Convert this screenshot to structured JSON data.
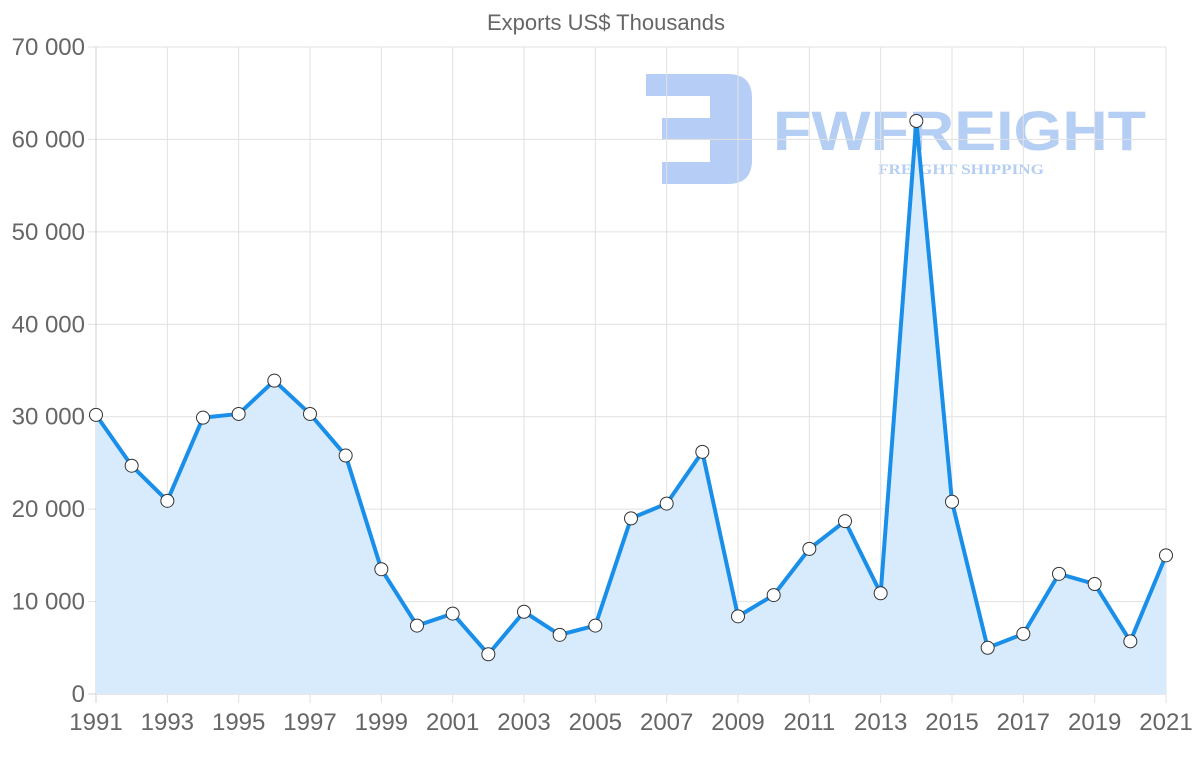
{
  "chart_data": {
    "type": "area",
    "title": "Exports US$ Thousands",
    "xlabel": "",
    "ylabel": "",
    "ylim": [
      0,
      70000
    ],
    "yticks": [
      0,
      10000,
      20000,
      30000,
      40000,
      50000,
      60000,
      70000
    ],
    "ytick_labels": [
      "0",
      "10 000",
      "20 000",
      "30 000",
      "40 000",
      "50 000",
      "60 000",
      "70 000"
    ],
    "xtick_labels": [
      "1991",
      "1993",
      "1995",
      "1997",
      "1999",
      "2001",
      "2003",
      "2005",
      "2007",
      "2009",
      "2011",
      "2013",
      "2015",
      "2017",
      "2019",
      "2021"
    ],
    "grid": true,
    "legend": "none",
    "categories": [
      "1991",
      "1992",
      "1993",
      "1994",
      "1995",
      "1996",
      "1997",
      "1998",
      "1999",
      "2000",
      "2001",
      "2002",
      "2003",
      "2004",
      "2005",
      "2006",
      "2007",
      "2008",
      "2009",
      "2010",
      "2011",
      "2012",
      "2013",
      "2014",
      "2015",
      "2016",
      "2017",
      "2018",
      "2019",
      "2020",
      "2021"
    ],
    "series": [
      {
        "name": "Exports US$ Thousands",
        "values": [
          30200,
          24700,
          20900,
          29900,
          30300,
          33900,
          30300,
          25800,
          13500,
          7400,
          8700,
          4300,
          8900,
          6400,
          7400,
          19000,
          20600,
          26200,
          8400,
          10700,
          15700,
          18700,
          10900,
          62000,
          20800,
          5000,
          6500,
          13000,
          11900,
          5700,
          15000
        ],
        "line_color": "#1a8fe9",
        "fill_color": "#d8ebfc"
      }
    ]
  },
  "watermark": {
    "brand": "FWFREIGHT",
    "tagline": "FREIGHT SHIPPING",
    "color": "#a9c6f3"
  }
}
